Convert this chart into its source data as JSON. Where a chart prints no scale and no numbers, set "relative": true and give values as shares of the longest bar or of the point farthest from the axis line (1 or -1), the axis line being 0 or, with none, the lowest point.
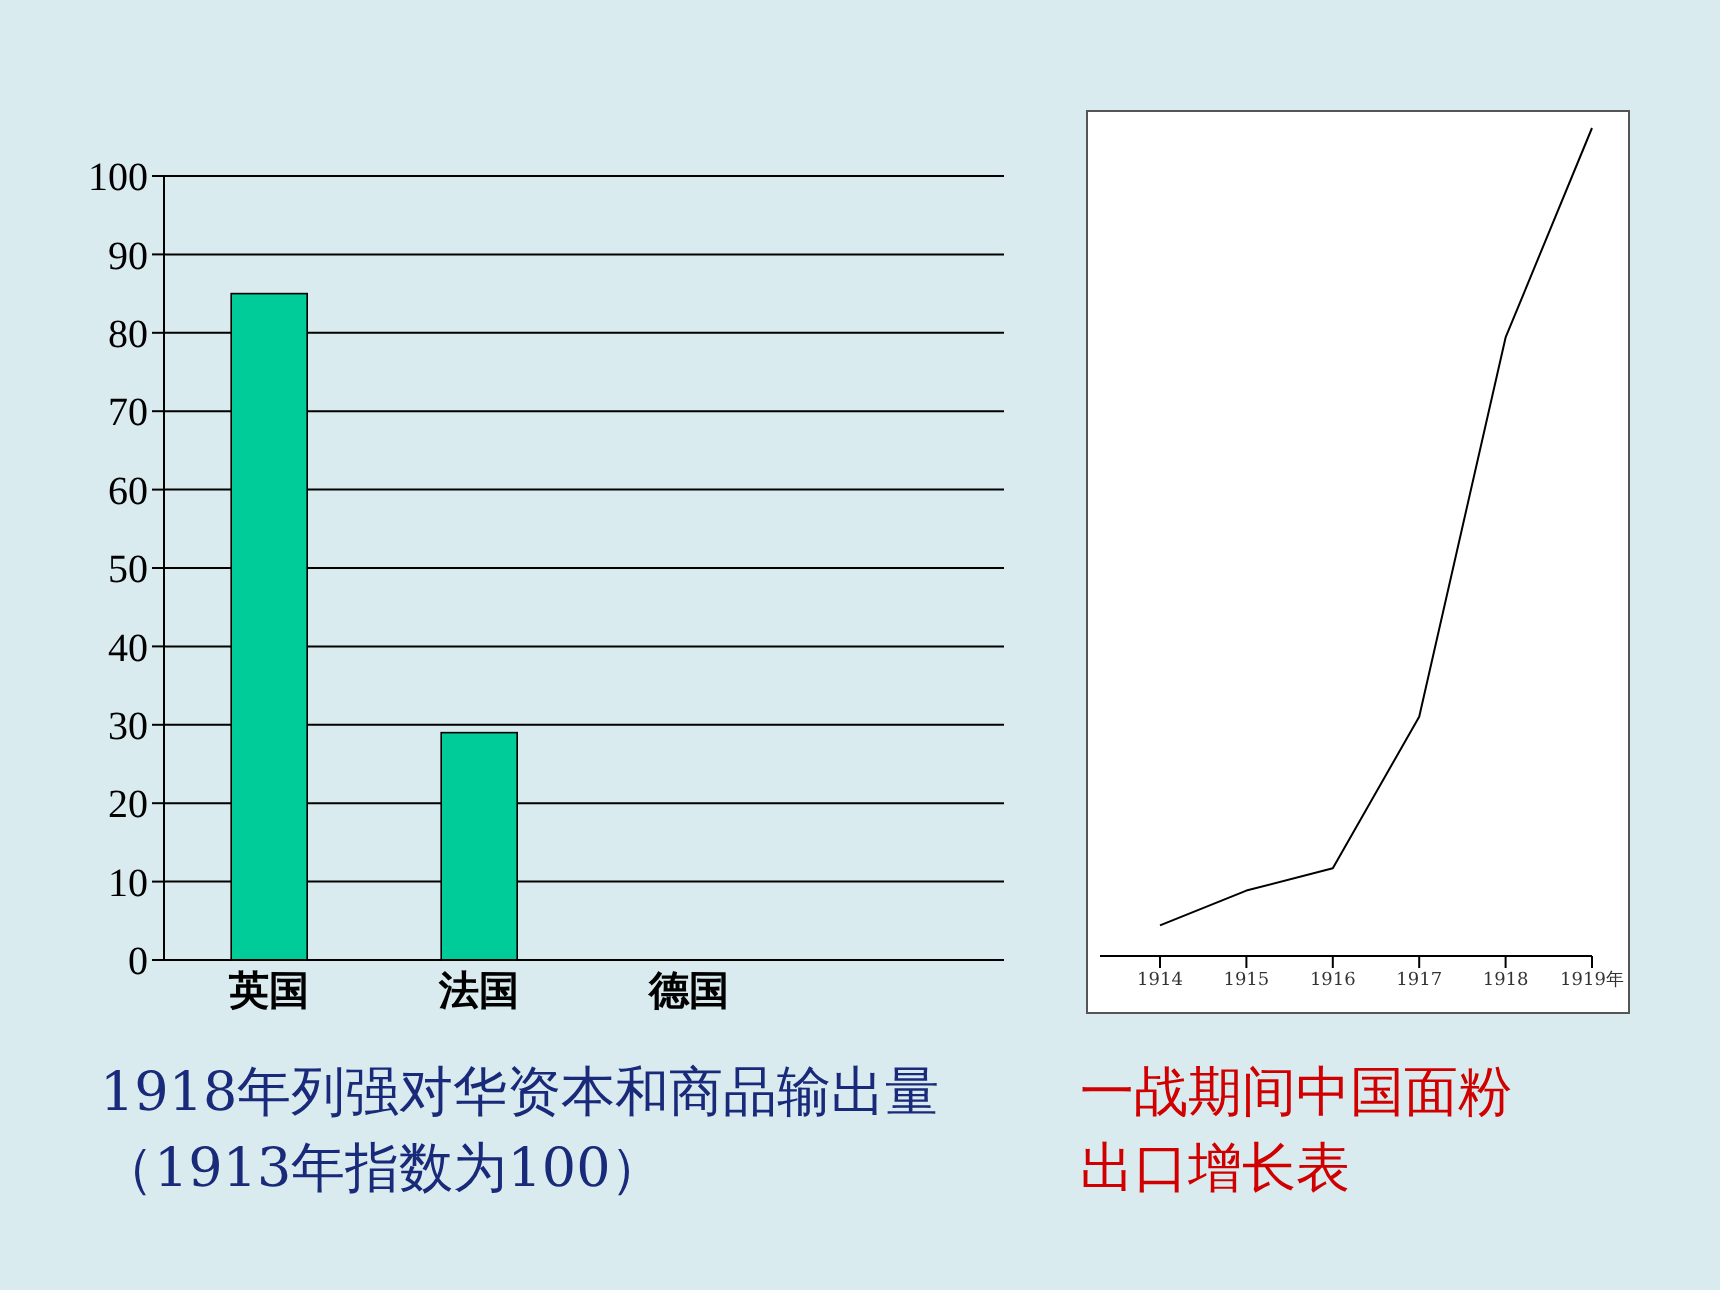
{
  "chart_data": [
    {
      "type": "bar",
      "title": "1918年列强对华资本和商品输出量（1913年指数为100）",
      "categories": [
        "英国",
        "法国",
        "德国",
        null
      ],
      "values": [
        85,
        29,
        0,
        null
      ],
      "color": "#00cc99",
      "ylim": [
        0,
        100
      ],
      "yticks": [
        0,
        10,
        20,
        30,
        40,
        50,
        60,
        70,
        80,
        90,
        100
      ],
      "grid": "y"
    },
    {
      "type": "line",
      "title": "一战期间中国面粉出口增长表",
      "categories": [
        "1914",
        "1915",
        "1916",
        "1917",
        "1918",
        "1919年"
      ],
      "relative": true,
      "values": [
        0.037,
        0.079,
        0.106,
        0.289,
        0.747,
        1
      ],
      "color": "#000000",
      "marker": "none"
    }
  ]
}
